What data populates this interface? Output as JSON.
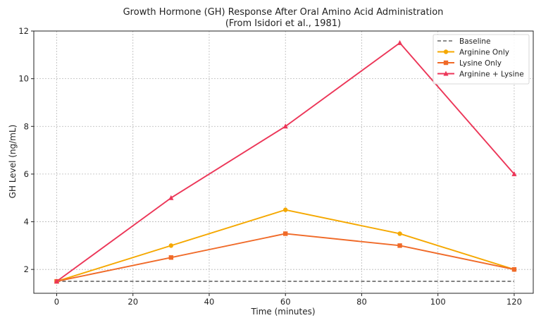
{
  "chart_data": {
    "type": "line",
    "title": "Growth Hormone (GH) Response After Oral Amino Acid Administration",
    "subtitle": "(From Isidori et al., 1981)",
    "xlabel": "Time (minutes)",
    "ylabel": "GH Level (ng/mL)",
    "xlim": [
      -6,
      125
    ],
    "ylim": [
      1,
      12
    ],
    "xticks": [
      0,
      20,
      40,
      60,
      80,
      100,
      120
    ],
    "yticks": [
      2,
      4,
      6,
      8,
      10,
      12
    ],
    "grid": true,
    "legend_position": "top-right",
    "x": [
      0,
      30,
      60,
      90,
      120
    ],
    "series": [
      {
        "name": "Baseline",
        "values": [
          1.5,
          1.5,
          1.5,
          1.5,
          1.5
        ],
        "color": "#666666",
        "style": "dashed",
        "marker": "none"
      },
      {
        "name": "Arginine Only",
        "values": [
          1.5,
          3.0,
          4.5,
          3.5,
          2.0
        ],
        "color": "#f5a800",
        "style": "solid",
        "marker": "circle"
      },
      {
        "name": "Lysine Only",
        "values": [
          1.5,
          2.5,
          3.5,
          3.0,
          2.0
        ],
        "color": "#f06a28",
        "style": "solid",
        "marker": "square"
      },
      {
        "name": "Arginine + Lysine",
        "values": [
          1.5,
          5.0,
          8.0,
          11.5,
          6.0
        ],
        "color": "#ec3658",
        "style": "solid",
        "marker": "triangle"
      }
    ]
  }
}
